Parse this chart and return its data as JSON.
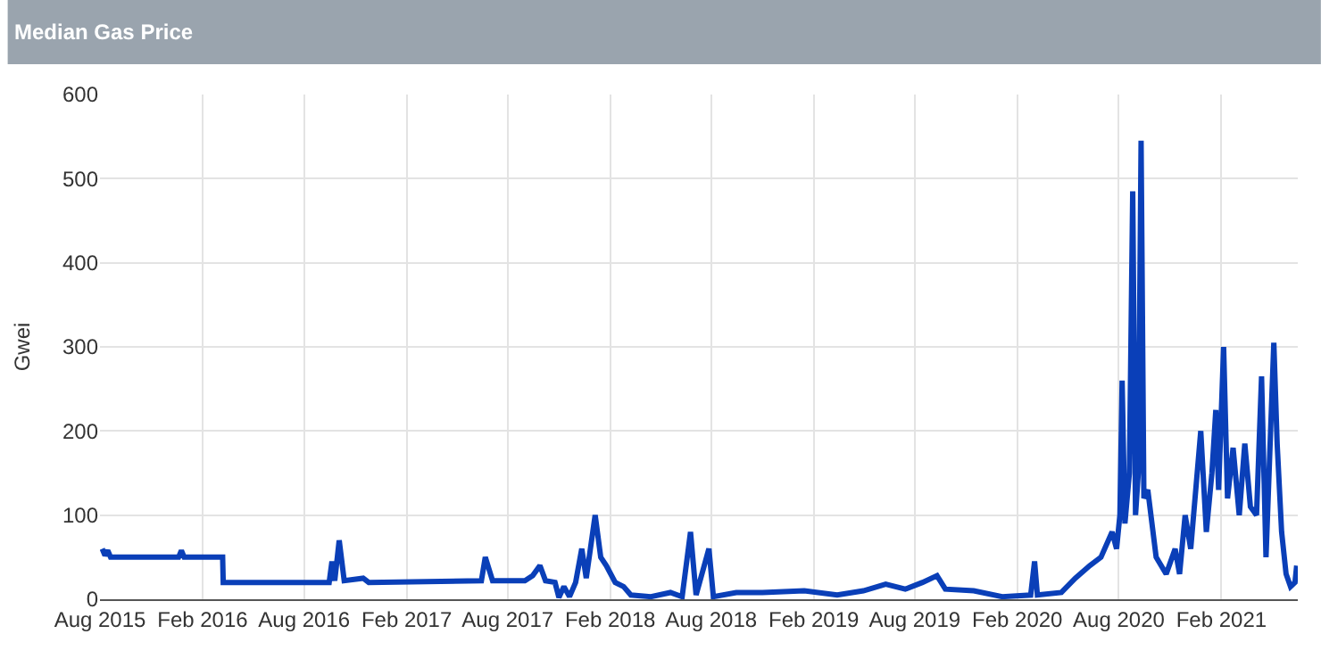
{
  "chart_data": {
    "type": "line",
    "title": "Median Gas Price",
    "ylabel": "Gwei",
    "x": [
      "2015-08-05",
      "2015-08-10",
      "2015-08-15",
      "2015-08-20",
      "2015-12-20",
      "2015-12-25",
      "2015-12-30",
      "2016-03-08",
      "2016-03-09",
      "2016-09-15",
      "2016-09-20",
      "2016-09-25",
      "2016-10-03",
      "2016-10-12",
      "2016-11-15",
      "2016-11-25",
      "2017-06-15",
      "2017-06-22",
      "2017-07-05",
      "2017-09-01",
      "2017-09-15",
      "2017-09-28",
      "2017-10-08",
      "2017-10-25",
      "2017-11-01",
      "2017-11-10",
      "2017-11-20",
      "2017-12-01",
      "2017-12-12",
      "2017-12-20",
      "2018-01-05",
      "2018-01-15",
      "2018-01-25",
      "2018-02-10",
      "2018-02-25",
      "2018-03-10",
      "2018-04-15",
      "2018-05-20",
      "2018-06-10",
      "2018-06-25",
      "2018-07-05",
      "2018-07-28",
      "2018-08-05",
      "2018-09-15",
      "2018-11-01",
      "2019-01-15",
      "2019-03-15",
      "2019-05-01",
      "2019-06-10",
      "2019-07-15",
      "2019-08-15",
      "2019-09-10",
      "2019-09-25",
      "2019-11-15",
      "2020-01-05",
      "2020-02-25",
      "2020-03-03",
      "2020-03-08",
      "2020-04-20",
      "2020-05-15",
      "2020-06-10",
      "2020-06-30",
      "2020-07-20",
      "2020-07-28",
      "2020-08-03",
      "2020-08-07",
      "2020-08-12",
      "2020-08-20",
      "2020-08-26",
      "2020-08-31",
      "2020-09-05",
      "2020-09-10",
      "2020-09-15",
      "2020-09-22",
      "2020-10-07",
      "2020-10-25",
      "2020-11-10",
      "2020-11-18",
      "2020-11-28",
      "2020-12-08",
      "2020-12-26",
      "2021-01-05",
      "2021-01-15",
      "2021-01-22",
      "2021-01-27",
      "2021-02-05",
      "2021-02-12",
      "2021-02-22",
      "2021-03-05",
      "2021-03-15",
      "2021-03-25",
      "2021-04-05",
      "2021-04-14",
      "2021-04-22",
      "2021-05-06",
      "2021-05-12",
      "2021-05-20",
      "2021-05-28",
      "2021-06-05",
      "2021-06-13",
      "2021-06-16"
    ],
    "series": [
      {
        "color": "#0a3fb8",
        "values": [
          60,
          52,
          58,
          50,
          50,
          58,
          50,
          50,
          20,
          20,
          45,
          22,
          70,
          22,
          25,
          20,
          22,
          50,
          22,
          22,
          28,
          40,
          22,
          20,
          2,
          15,
          3,
          20,
          60,
          25,
          100,
          50,
          40,
          20,
          15,
          5,
          3,
          8,
          3,
          80,
          5,
          60,
          3,
          8,
          8,
          10,
          5,
          10,
          18,
          12,
          20,
          28,
          12,
          10,
          3,
          5,
          45,
          5,
          8,
          25,
          40,
          50,
          80,
          60,
          100,
          260,
          90,
          150,
          485,
          100,
          150,
          545,
          120,
          130,
          50,
          30,
          60,
          30,
          100,
          60,
          200,
          80,
          150,
          225,
          130,
          300,
          120,
          180,
          100,
          185,
          110,
          100,
          265,
          50,
          305,
          185,
          80,
          30,
          15,
          20,
          40
        ]
      }
    ],
    "xlim": [
      "2015-08-01",
      "2021-06-18"
    ],
    "xticks": [
      {
        "value": "2015-08-01",
        "label": "Aug 2015"
      },
      {
        "value": "2016-02-01",
        "label": "Feb 2016"
      },
      {
        "value": "2016-08-01",
        "label": "Aug 2016"
      },
      {
        "value": "2017-02-01",
        "label": "Feb 2017"
      },
      {
        "value": "2017-08-01",
        "label": "Aug 2017"
      },
      {
        "value": "2018-02-01",
        "label": "Feb 2018"
      },
      {
        "value": "2018-08-01",
        "label": "Aug 2018"
      },
      {
        "value": "2019-02-01",
        "label": "Feb 2019"
      },
      {
        "value": "2019-08-01",
        "label": "Aug 2019"
      },
      {
        "value": "2020-02-01",
        "label": "Feb 2020"
      },
      {
        "value": "2020-08-01",
        "label": "Aug 2020"
      },
      {
        "value": "2021-02-01",
        "label": "Feb 2021"
      }
    ],
    "ylim": [
      0,
      600
    ],
    "yticks": [
      0,
      100,
      200,
      300,
      400,
      500,
      600
    ],
    "grid": true,
    "marker": "none",
    "line_style": "solid"
  }
}
